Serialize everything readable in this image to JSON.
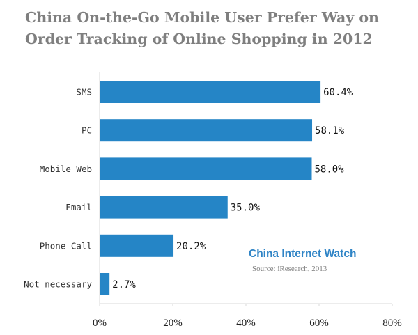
{
  "chart_data": {
    "type": "bar",
    "orientation": "horizontal",
    "title_lines": [
      "China On-the-Go Mobile User Prefer  Way on",
      "Order Tracking of Online Shopping in 2012"
    ],
    "categories": [
      "SMS",
      "PC",
      "Mobile Web",
      "Email",
      "Phone Call",
      "Not necessary"
    ],
    "values": [
      60.4,
      58.1,
      58.0,
      35.0,
      20.2,
      2.7
    ],
    "value_labels": [
      "60.4%",
      "58.1%",
      "58.0%",
      "35.0%",
      "20.2%",
      "2.7%"
    ],
    "xlim": [
      0,
      80
    ],
    "xticks": [
      0,
      20,
      40,
      60,
      80
    ],
    "xtick_labels": [
      "0%",
      "20%",
      "40%",
      "60%",
      "80%"
    ],
    "bar_color": "#2585c6",
    "grid": false,
    "legend": false
  },
  "watermark": {
    "brand": "China Internet Watch",
    "source": "Source: iResearch, 2013"
  }
}
